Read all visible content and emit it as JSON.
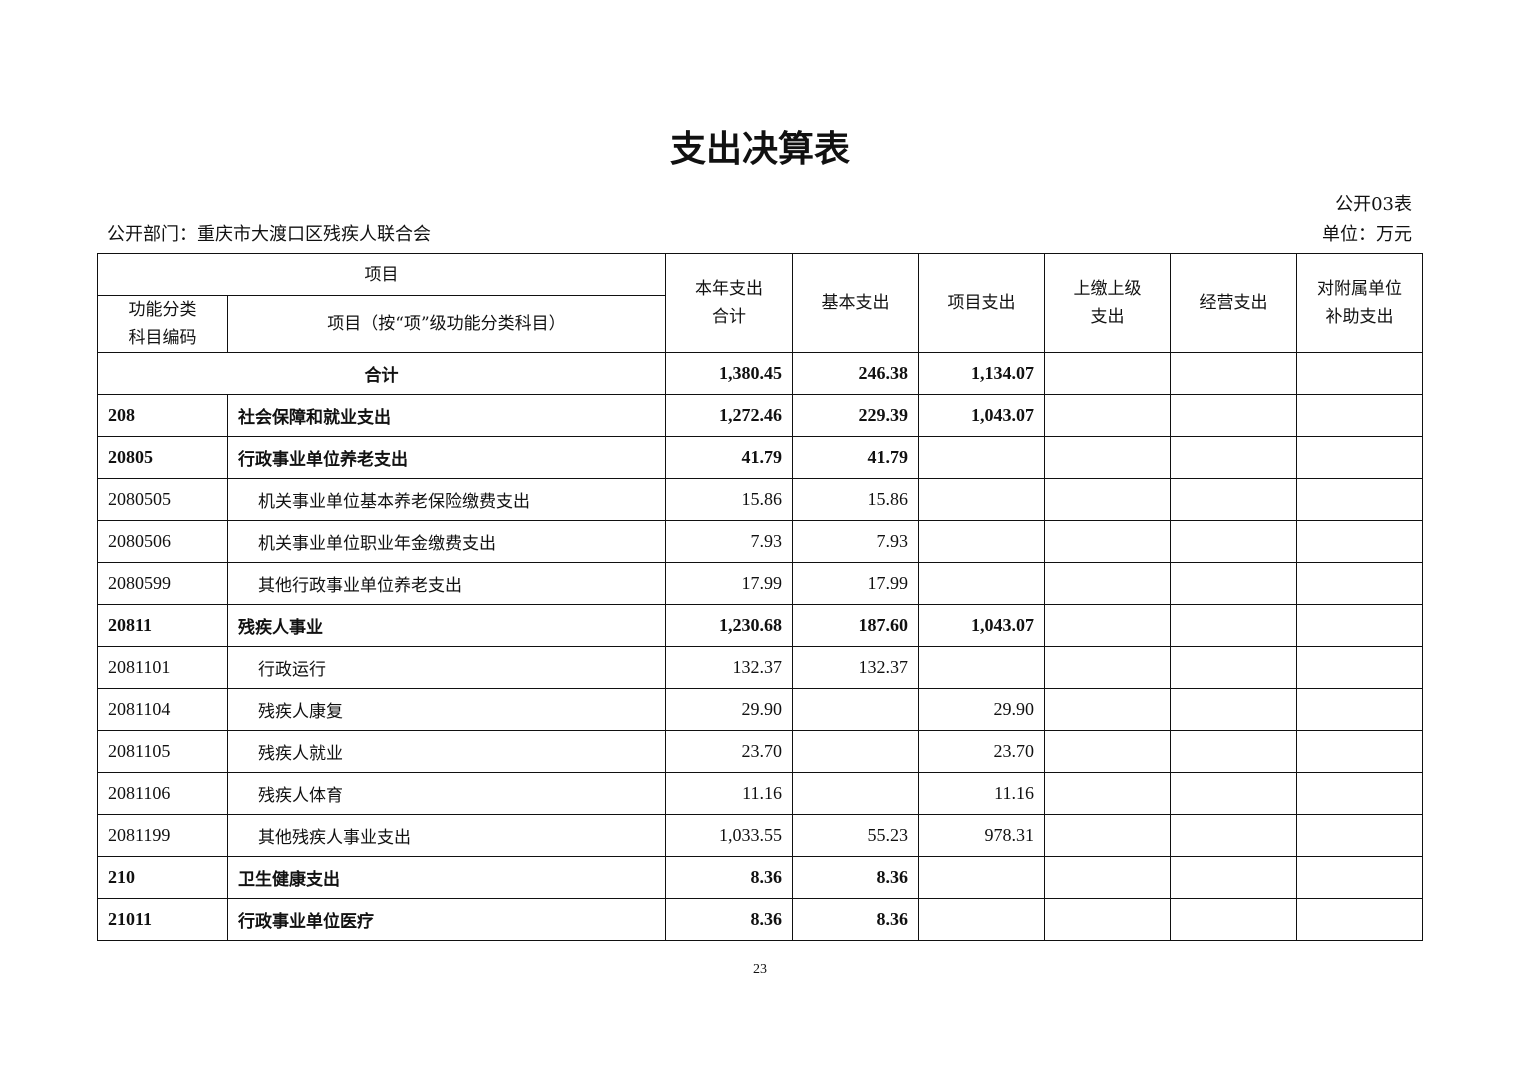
{
  "title": "支出决算表",
  "table_no": "公开03表",
  "department": "公开部门：重庆市大渡口区残疾人联合会",
  "unit": "单位：万元",
  "headers": {
    "item_group": "项目",
    "code": "功能分类科目编码",
    "name": "项目（按“项”级功能分类科目）",
    "total": "本年支出合计",
    "basic": "基本支出",
    "project": "项目支出",
    "upper": "上缴上级支出",
    "business": "经营支出",
    "subsidy": "对附属单位补助支出"
  },
  "total_row": {
    "label": "合计",
    "total": "1,380.45",
    "basic": "246.38",
    "project": "1,134.07",
    "upper": "",
    "business": "",
    "subsidy": ""
  },
  "rows": [
    {
      "bold": true,
      "code": "208",
      "name": "社会保障和就业支出",
      "total": "1,272.46",
      "basic": "229.39",
      "project": "1,043.07"
    },
    {
      "bold": true,
      "code": "20805",
      "name": "行政事业单位养老支出",
      "total": "41.79",
      "basic": "41.79",
      "project": ""
    },
    {
      "bold": false,
      "code": "2080505",
      "name": "机关事业单位基本养老保险缴费支出",
      "total": "15.86",
      "basic": "15.86",
      "project": ""
    },
    {
      "bold": false,
      "code": "2080506",
      "name": "机关事业单位职业年金缴费支出",
      "total": "7.93",
      "basic": "7.93",
      "project": ""
    },
    {
      "bold": false,
      "code": "2080599",
      "name": "其他行政事业单位养老支出",
      "total": "17.99",
      "basic": "17.99",
      "project": ""
    },
    {
      "bold": true,
      "code": "20811",
      "name": "残疾人事业",
      "total": "1,230.68",
      "basic": "187.60",
      "project": "1,043.07"
    },
    {
      "bold": false,
      "code": "2081101",
      "name": "行政运行",
      "total": "132.37",
      "basic": "132.37",
      "project": ""
    },
    {
      "bold": false,
      "code": "2081104",
      "name": "残疾人康复",
      "total": "29.90",
      "basic": "",
      "project": "29.90"
    },
    {
      "bold": false,
      "code": "2081105",
      "name": "残疾人就业",
      "total": "23.70",
      "basic": "",
      "project": "23.70"
    },
    {
      "bold": false,
      "code": "2081106",
      "name": "残疾人体育",
      "total": "11.16",
      "basic": "",
      "project": "11.16"
    },
    {
      "bold": false,
      "code": "2081199",
      "name": "其他残疾人事业支出",
      "total": "1,033.55",
      "basic": "55.23",
      "project": "978.31"
    },
    {
      "bold": true,
      "code": "210",
      "name": "卫生健康支出",
      "total": "8.36",
      "basic": "8.36",
      "project": ""
    },
    {
      "bold": true,
      "code": "21011",
      "name": "行政事业单位医疗",
      "total": "8.36",
      "basic": "8.36",
      "project": ""
    }
  ],
  "page_number": "23"
}
